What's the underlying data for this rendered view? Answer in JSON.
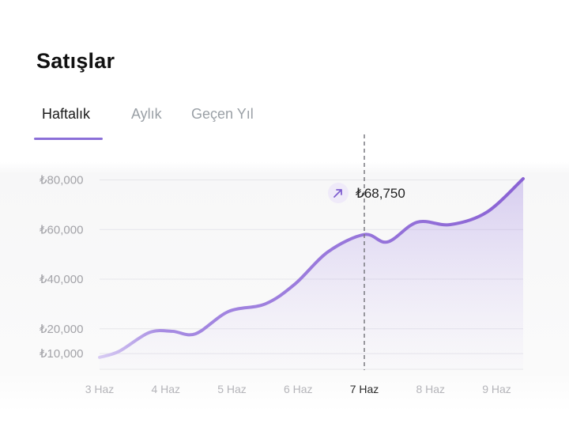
{
  "header": {
    "title": "Satışlar"
  },
  "tabs": [
    {
      "label": "Haftalık",
      "active": true
    },
    {
      "label": "Aylık",
      "active": false
    },
    {
      "label": "Geçen Yıl",
      "active": false
    }
  ],
  "colors": {
    "accent": "#8b6fd8",
    "line": "#8e6ad6",
    "grid": "#e6e6ea"
  },
  "tooltip": {
    "icon": "trend-up-arrow-icon",
    "value": "₺68,750"
  },
  "chart_data": {
    "type": "area",
    "title": "",
    "xlabel": "",
    "ylabel": "",
    "categories": [
      "3 Haz",
      "4 Haz",
      "5 Haz",
      "6 Haz",
      "7 Haz",
      "8 Haz",
      "9 Haz"
    ],
    "highlight_category": "7 Haz",
    "y_ticks": [
      {
        "value": 10000,
        "label": "₺10,000"
      },
      {
        "value": 20000,
        "label": "₺20,000"
      },
      {
        "value": 40000,
        "label": "₺40,000"
      },
      {
        "value": 60000,
        "label": "₺60,000"
      },
      {
        "value": 80000,
        "label": "₺80,000"
      }
    ],
    "series": [
      {
        "x": [
          3.0,
          3.3,
          3.75,
          4.1,
          4.45,
          4.95,
          5.5,
          5.95,
          6.45,
          7.0,
          7.35,
          7.8,
          8.3,
          8.85,
          9.4
        ],
        "y": [
          8500,
          11000,
          18500,
          19000,
          18000,
          27000,
          30000,
          38000,
          51000,
          58000,
          55000,
          63000,
          62000,
          67000,
          80500
        ]
      }
    ],
    "ylim": [
      4000,
      84000
    ],
    "grid": true,
    "legend": "none"
  }
}
